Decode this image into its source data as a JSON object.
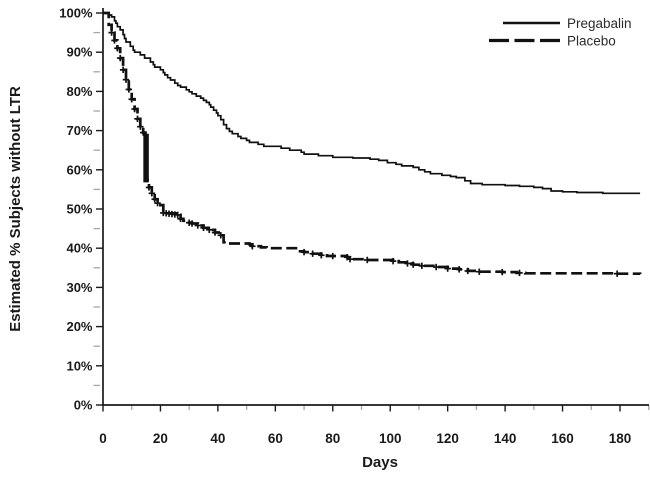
{
  "figure": {
    "background_color": "#ffffff",
    "axis_color": "#1a1a1a",
    "minor_tick_color": "#a6a6a6",
    "curve_color": "#111111"
  },
  "chart_data": {
    "type": "line",
    "subtype": "kaplan-meier-step",
    "title": "",
    "xlabel": "Days",
    "ylabel": "Estimated % Subjects without LTR",
    "xlim": [
      0,
      190
    ],
    "ylim": [
      0,
      100
    ],
    "x_major_ticks": [
      0,
      20,
      40,
      60,
      80,
      100,
      120,
      140,
      160,
      180
    ],
    "x_minor_step": 10,
    "y_major_ticks": [
      100,
      90,
      80,
      70,
      60,
      50,
      40,
      30,
      20,
      10,
      0
    ],
    "y_minor_step": 5,
    "y_tick_suffix": "%",
    "grid": "off",
    "legend": {
      "position": "top-right",
      "entries": [
        {
          "label": "Pregabalin",
          "style": "solid"
        },
        {
          "label": "Placebo",
          "style": "dashed"
        }
      ]
    },
    "series": [
      {
        "name": "Pregabalin",
        "style": "solid",
        "points": [
          [
            0,
            100
          ],
          [
            2,
            99.5
          ],
          [
            3,
            99
          ],
          [
            4,
            98
          ],
          [
            4.5,
            97.4
          ],
          [
            5,
            96.5
          ],
          [
            6,
            95.7
          ],
          [
            7,
            94.5
          ],
          [
            7.5,
            93.5
          ],
          [
            8,
            92.6
          ],
          [
            9.5,
            91.5
          ],
          [
            10.5,
            90.5
          ],
          [
            11,
            90
          ],
          [
            13,
            89.3
          ],
          [
            14.5,
            88.5
          ],
          [
            16.5,
            87.5
          ],
          [
            17.5,
            86.8
          ],
          [
            18,
            86.2
          ],
          [
            20,
            85.5
          ],
          [
            21,
            84.8
          ],
          [
            21.5,
            84.2
          ],
          [
            22.5,
            83.5
          ],
          [
            23.5,
            82.9
          ],
          [
            25,
            82.1
          ],
          [
            26,
            81.5
          ],
          [
            27,
            81.1
          ],
          [
            29,
            80.4
          ],
          [
            30,
            79.9
          ],
          [
            31,
            79.4
          ],
          [
            32.5,
            78.8
          ],
          [
            34,
            78.3
          ],
          [
            35,
            77.7
          ],
          [
            36,
            77.2
          ],
          [
            37,
            76.6
          ],
          [
            37.5,
            76
          ],
          [
            38.5,
            75.2
          ],
          [
            39.5,
            74.5
          ],
          [
            40,
            73.8
          ],
          [
            41,
            72.8
          ],
          [
            42,
            71.5
          ],
          [
            43,
            70.5
          ],
          [
            44,
            69.8
          ],
          [
            45,
            69.2
          ],
          [
            47,
            68.5
          ],
          [
            48,
            68
          ],
          [
            50,
            67.5
          ],
          [
            51,
            67
          ],
          [
            54,
            66.5
          ],
          [
            56,
            66
          ],
          [
            62,
            65.5
          ],
          [
            65,
            65
          ],
          [
            69,
            64.5
          ],
          [
            70,
            64
          ],
          [
            75,
            63.6
          ],
          [
            80,
            63.2
          ],
          [
            87,
            63
          ],
          [
            93,
            62.7
          ],
          [
            96,
            62.4
          ],
          [
            99,
            61.8
          ],
          [
            102,
            61.4
          ],
          [
            104,
            61
          ],
          [
            108,
            60.6
          ],
          [
            110,
            60
          ],
          [
            112,
            59.5
          ],
          [
            114,
            59
          ],
          [
            118,
            58.6
          ],
          [
            121,
            58.3
          ],
          [
            123,
            58
          ],
          [
            126,
            57.2
          ],
          [
            128,
            56.5
          ],
          [
            132,
            56.2
          ],
          [
            140,
            56
          ],
          [
            145,
            55.8
          ],
          [
            150,
            55.5
          ],
          [
            153,
            55.2
          ],
          [
            156,
            54.6
          ],
          [
            160,
            54.4
          ],
          [
            165,
            54.2
          ],
          [
            174,
            54
          ],
          [
            187,
            54
          ]
        ]
      },
      {
        "name": "Placebo",
        "style": "dashed",
        "points": [
          [
            0,
            100
          ],
          [
            2,
            97
          ],
          [
            3,
            95
          ],
          [
            4,
            93
          ],
          [
            5,
            91
          ],
          [
            6,
            88.5
          ],
          [
            7,
            85.5
          ],
          [
            8,
            83
          ],
          [
            9,
            80.5
          ],
          [
            10,
            78
          ],
          [
            11,
            75.5
          ],
          [
            12,
            73
          ],
          [
            13,
            71
          ],
          [
            14,
            69.5
          ],
          [
            14.8,
            63
          ],
          [
            15.3,
            57.5
          ],
          [
            16,
            55.5
          ],
          [
            17,
            54
          ],
          [
            18,
            52.5
          ],
          [
            19,
            51.5
          ],
          [
            20,
            51
          ],
          [
            21,
            49
          ],
          [
            22,
            48.9
          ],
          [
            26,
            48.5
          ],
          [
            27,
            47.5
          ],
          [
            28,
            47
          ],
          [
            30,
            46.5
          ],
          [
            31,
            46.3
          ],
          [
            33,
            45.8
          ],
          [
            35,
            45.2
          ],
          [
            37,
            44.7
          ],
          [
            39,
            44
          ],
          [
            41,
            43.3
          ],
          [
            42,
            41.5
          ],
          [
            43,
            41.2
          ],
          [
            51,
            41
          ],
          [
            52,
            40.5
          ],
          [
            55,
            40.2
          ],
          [
            57,
            40
          ],
          [
            68,
            39.2
          ],
          [
            70,
            39
          ],
          [
            73,
            38.6
          ],
          [
            76,
            38.2
          ],
          [
            78,
            38
          ],
          [
            85,
            37.7
          ],
          [
            86,
            37.2
          ],
          [
            92,
            37
          ],
          [
            101,
            36.7
          ],
          [
            103,
            36.4
          ],
          [
            106,
            36.1
          ],
          [
            108,
            35.8
          ],
          [
            111,
            35.5
          ],
          [
            116,
            35.2
          ],
          [
            120,
            34.8
          ],
          [
            124,
            34.6
          ],
          [
            127,
            34.2
          ],
          [
            131,
            34
          ],
          [
            139,
            33.9
          ],
          [
            144,
            33.7
          ],
          [
            147,
            33.6
          ],
          [
            179,
            33.5
          ],
          [
            187,
            33.4
          ]
        ],
        "censor_marks": [
          [
            3,
            95
          ],
          [
            4,
            93
          ],
          [
            5,
            91
          ],
          [
            6,
            88.5
          ],
          [
            7,
            85.5
          ],
          [
            8,
            83
          ],
          [
            9,
            80.5
          ],
          [
            10,
            78
          ],
          [
            11,
            75.5
          ],
          [
            12,
            73
          ],
          [
            13,
            71
          ],
          [
            14,
            69.5
          ],
          [
            16,
            55.5
          ],
          [
            17,
            54
          ],
          [
            18,
            52.5
          ],
          [
            19,
            51.5
          ],
          [
            21,
            49
          ],
          [
            22,
            48.9
          ],
          [
            23,
            48.8
          ],
          [
            24,
            48.7
          ],
          [
            25,
            48.6
          ],
          [
            26,
            48.5
          ],
          [
            27,
            47.5
          ],
          [
            30,
            46.5
          ],
          [
            31,
            46.3
          ],
          [
            33,
            45.8
          ],
          [
            35,
            45.2
          ],
          [
            37,
            44.7
          ],
          [
            39,
            44
          ],
          [
            41,
            43.3
          ],
          [
            52,
            40.5
          ],
          [
            70,
            39
          ],
          [
            73,
            38.6
          ],
          [
            76,
            38.2
          ],
          [
            80,
            38
          ],
          [
            85,
            37.7
          ],
          [
            86,
            37.2
          ],
          [
            92,
            37
          ],
          [
            101,
            36.7
          ],
          [
            106,
            36.1
          ],
          [
            108,
            35.8
          ],
          [
            111,
            35.5
          ],
          [
            116,
            35.2
          ],
          [
            120,
            34.8
          ],
          [
            124,
            34.6
          ],
          [
            127,
            34.2
          ],
          [
            131,
            34
          ],
          [
            139,
            33.9
          ],
          [
            145,
            33.7
          ],
          [
            179,
            33.5
          ]
        ],
        "censor_cluster_bar": {
          "day": 15,
          "from_pct": 69.2,
          "to_pct": 56.8
        }
      }
    ]
  }
}
